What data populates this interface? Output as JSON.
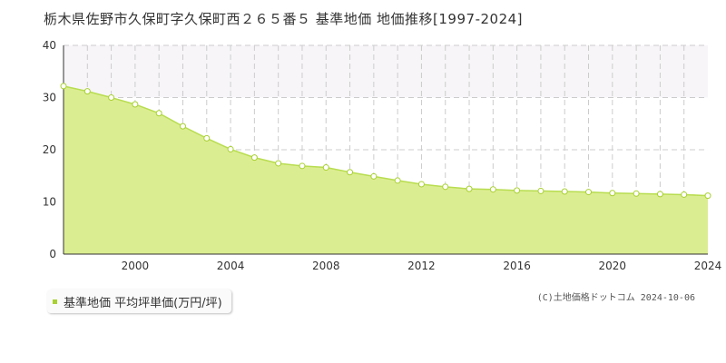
{
  "chart_data": {
    "type": "area",
    "title": "栃木県佐野市久保町字久保町西２６５番５ 基準地価 地価推移[1997-2024]",
    "xlabel": "",
    "ylabel": "",
    "x": [
      1997,
      1998,
      1999,
      2000,
      2001,
      2002,
      2003,
      2004,
      2005,
      2006,
      2007,
      2008,
      2009,
      2010,
      2011,
      2012,
      2013,
      2014,
      2015,
      2016,
      2017,
      2018,
      2019,
      2020,
      2021,
      2022,
      2023,
      2024
    ],
    "series": [
      {
        "name": "基準地価 平均坪単価(万円/坪)",
        "values": [
          32.2,
          31.2,
          30.0,
          28.7,
          27.0,
          24.5,
          22.2,
          20.1,
          18.5,
          17.4,
          16.9,
          16.6,
          15.7,
          14.9,
          14.1,
          13.4,
          12.9,
          12.5,
          12.4,
          12.2,
          12.1,
          12.0,
          11.9,
          11.7,
          11.6,
          11.5,
          11.4,
          11.2
        ]
      }
    ],
    "xlim": [
      1997,
      2024
    ],
    "ylim": [
      0,
      40
    ],
    "x_ticks": [
      "2000",
      "2004",
      "2008",
      "2012",
      "2016",
      "2020",
      "2024"
    ],
    "x_tick_values": [
      2000,
      2004,
      2008,
      2012,
      2016,
      2020,
      2024
    ],
    "y_ticks": [
      "0",
      "10",
      "20",
      "30",
      "40"
    ],
    "y_tick_values": [
      0,
      10,
      20,
      30,
      40
    ],
    "grid": true,
    "legend_position": "bottom-left",
    "colors": {
      "fill": "#dbed91",
      "line": "#b8dd50",
      "marker_stroke": "#a8d030",
      "marker_fill": "#ffffff",
      "band": "#f7f5f8",
      "grid": "#cccccc"
    }
  },
  "legend": {
    "label": "基準地価 平均坪単価(万円/坪)"
  },
  "copyright": "(C)土地価格ドットコム 2024-10-06"
}
